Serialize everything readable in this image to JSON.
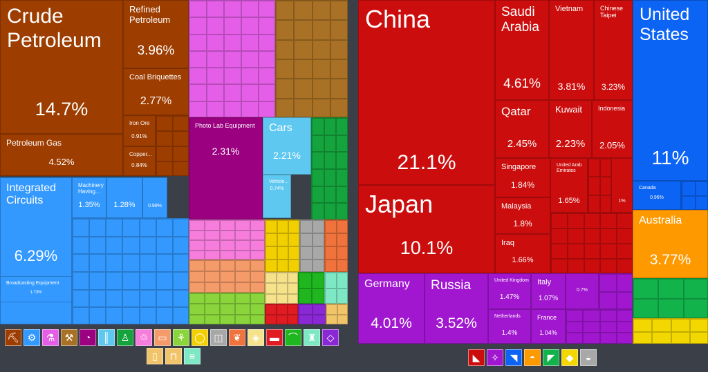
{
  "chart_data": [
    {
      "type": "treemap",
      "title": "",
      "items": [
        {
          "label": "Crude Petroleum",
          "value": "14.7%",
          "color": "#9e3d00"
        },
        {
          "label": "Refined Petroleum",
          "value": "3.96%",
          "color": "#9e3d00"
        },
        {
          "label": "Coal Briquettes",
          "value": "2.77%",
          "color": "#9e3d00"
        },
        {
          "label": "Iron Ore",
          "value": "0.91%",
          "color": "#9e3d00"
        },
        {
          "label": "Copper...",
          "value": "0.84%",
          "color": "#9e3d00"
        },
        {
          "label": "Petroleum Gas",
          "value": "4.52%",
          "color": "#9e3d00"
        },
        {
          "label": "Integrated Circuits",
          "value": "6.29%",
          "color": "#3399ff"
        },
        {
          "label": "Machinery Having...",
          "value": "1.35%",
          "color": "#3399ff"
        },
        {
          "label": "",
          "value": "1.28%",
          "color": "#3399ff"
        },
        {
          "label": "",
          "value": "0.99%",
          "color": "#3399ff"
        },
        {
          "label": "Broadcasting Equipment",
          "value": "1.73%",
          "color": "#3399ff"
        },
        {
          "label": "Photo Lab Equipment",
          "value": "2.31%",
          "color": "#9a0080"
        },
        {
          "label": "Cars",
          "value": "2.21%",
          "color": "#5ec8f0"
        },
        {
          "label": "Vehicle...",
          "value": "0.74%",
          "color": "#5ec8f0"
        }
      ]
    },
    {
      "type": "treemap",
      "title": "",
      "items": [
        {
          "label": "China",
          "value": "21.1%",
          "color": "#cc0d0d"
        },
        {
          "label": "Japan",
          "value": "10.1%",
          "color": "#cc0d0d"
        },
        {
          "label": "Saudi Arabia",
          "value": "4.61%",
          "color": "#cc0d0d"
        },
        {
          "label": "Vietnam",
          "value": "3.81%",
          "color": "#cc0d0d"
        },
        {
          "label": "Chinese Taipei",
          "value": "3.23%",
          "color": "#cc0d0d"
        },
        {
          "label": "Qatar",
          "value": "2.45%",
          "color": "#cc0d0d"
        },
        {
          "label": "Kuwait",
          "value": "2.23%",
          "color": "#cc0d0d"
        },
        {
          "label": "Indonesia",
          "value": "2.05%",
          "color": "#cc0d0d"
        },
        {
          "label": "Singapore",
          "value": "1.84%",
          "color": "#cc0d0d"
        },
        {
          "label": "United Arab Emirates",
          "value": "1.65%",
          "color": "#cc0d0d"
        },
        {
          "label": "",
          "value": "1%",
          "color": "#cc0d0d"
        },
        {
          "label": "Malaysia",
          "value": "1.8%",
          "color": "#cc0d0d"
        },
        {
          "label": "Iraq",
          "value": "1.66%",
          "color": "#cc0d0d"
        },
        {
          "label": "United States",
          "value": "11%",
          "color": "#0c64f5"
        },
        {
          "label": "Canada",
          "value": "0.96%",
          "color": "#0c64f5"
        },
        {
          "label": "Australia",
          "value": "3.77%",
          "color": "#ff9900"
        },
        {
          "label": "Germany",
          "value": "4.01%",
          "color": "#a117d0"
        },
        {
          "label": "Russia",
          "value": "3.52%",
          "color": "#a117d0"
        },
        {
          "label": "United Kingdom",
          "value": "1.47%",
          "color": "#a117d0"
        },
        {
          "label": "Italy",
          "value": "1.07%",
          "color": "#a117d0"
        },
        {
          "label": "",
          "value": "0.7%",
          "color": "#a117d0"
        },
        {
          "label": "Netherlands",
          "value": "1.4%",
          "color": "#a117d0"
        },
        {
          "label": "France",
          "value": "1.04%",
          "color": "#a117d0"
        }
      ]
    }
  ],
  "fill_blocks": [
    {
      "color": "#e45ee8"
    },
    {
      "color": "#a87125"
    },
    {
      "color": "#14a33c"
    },
    {
      "color": "#9a0080"
    },
    {
      "color": "#3399ff"
    },
    {
      "color": "#9e3d00"
    },
    {
      "color": "#f77ddc"
    },
    {
      "color": "#f59b6a"
    },
    {
      "color": "#f2d000"
    },
    {
      "color": "#a8a8a8"
    },
    {
      "color": "#f0723c"
    },
    {
      "color": "#89d53b"
    },
    {
      "color": "#f5e28a"
    },
    {
      "color": "#1fb61f"
    },
    {
      "color": "#7ee8c4"
    },
    {
      "color": "#e01b22"
    },
    {
      "color": "#8b28d6"
    },
    {
      "color": "#f2c46a"
    },
    {
      "color": "#cc0d0d"
    },
    {
      "color": "#a117d0"
    },
    {
      "color": "#0c64f5"
    },
    {
      "color": "#ff9900"
    },
    {
      "color": "#12b34a"
    },
    {
      "color": "#f2d700"
    }
  ],
  "product_icons": [
    {
      "name": "minerals-icon",
      "color": "#9e3d00",
      "glyph": "⛏"
    },
    {
      "name": "machines-icon",
      "color": "#3399ff",
      "glyph": "⚙"
    },
    {
      "name": "chemicals-icon",
      "color": "#e45ee8",
      "glyph": "⚗"
    },
    {
      "name": "metals-icon",
      "color": "#a87125",
      "glyph": "⚒"
    },
    {
      "name": "instruments-icon",
      "color": "#9a0080",
      "glyph": "◔"
    },
    {
      "name": "transportation-icon",
      "color": "#5ec8f0",
      "glyph": "║"
    },
    {
      "name": "textiles-icon",
      "color": "#14a33c",
      "glyph": "♙"
    },
    {
      "name": "plastics-icon",
      "color": "#f77ddc",
      "glyph": "♲"
    },
    {
      "name": "furniture-icon",
      "color": "#f59b6a",
      "glyph": "▭"
    },
    {
      "name": "vegetable-products-icon",
      "color": "#89d53b",
      "glyph": "⚘"
    },
    {
      "name": "foodstuffs-icon",
      "color": "#f2d000",
      "glyph": "◯"
    },
    {
      "name": "paper-goods-icon",
      "color": "#a8a8a8",
      "glyph": "◫"
    },
    {
      "name": "animal-products-icon",
      "color": "#f0723c",
      "glyph": "❦"
    },
    {
      "name": "mineral-products-icon",
      "color": "#f5e28a",
      "glyph": "◈"
    },
    {
      "name": "weapons-icon",
      "color": "#e01b22",
      "glyph": "▬"
    },
    {
      "name": "footwear-icon",
      "color": "#1fb61f",
      "glyph": "⌒"
    },
    {
      "name": "animal-hides-icon",
      "color": "#7ee8c4",
      "glyph": "♜"
    },
    {
      "name": "precious-metals-icon",
      "color": "#8b28d6",
      "glyph": "◇"
    },
    {
      "name": "miscellaneous-icon",
      "color": "#f2c46a",
      "glyph": "▯"
    },
    {
      "name": "arts-antiques-icon",
      "color": "#f2c46a",
      "glyph": "⊓"
    },
    {
      "name": "stone-glass-icon",
      "color": "#7ee8c4",
      "glyph": "≡"
    }
  ],
  "region_icons": [
    {
      "name": "asia-icon",
      "color": "#cc0d0d",
      "glyph": "◣"
    },
    {
      "name": "europe-icon",
      "color": "#a117d0",
      "glyph": "✧"
    },
    {
      "name": "north-america-icon",
      "color": "#0c64f5",
      "glyph": "◥"
    },
    {
      "name": "oceania-icon",
      "color": "#ff9900",
      "glyph": "◓"
    },
    {
      "name": "south-america-icon",
      "color": "#12b34a",
      "glyph": "◤"
    },
    {
      "name": "africa-icon",
      "color": "#f2d700",
      "glyph": "◆"
    },
    {
      "name": "other-region-icon",
      "color": "#a8a8a8",
      "glyph": "◒"
    }
  ]
}
